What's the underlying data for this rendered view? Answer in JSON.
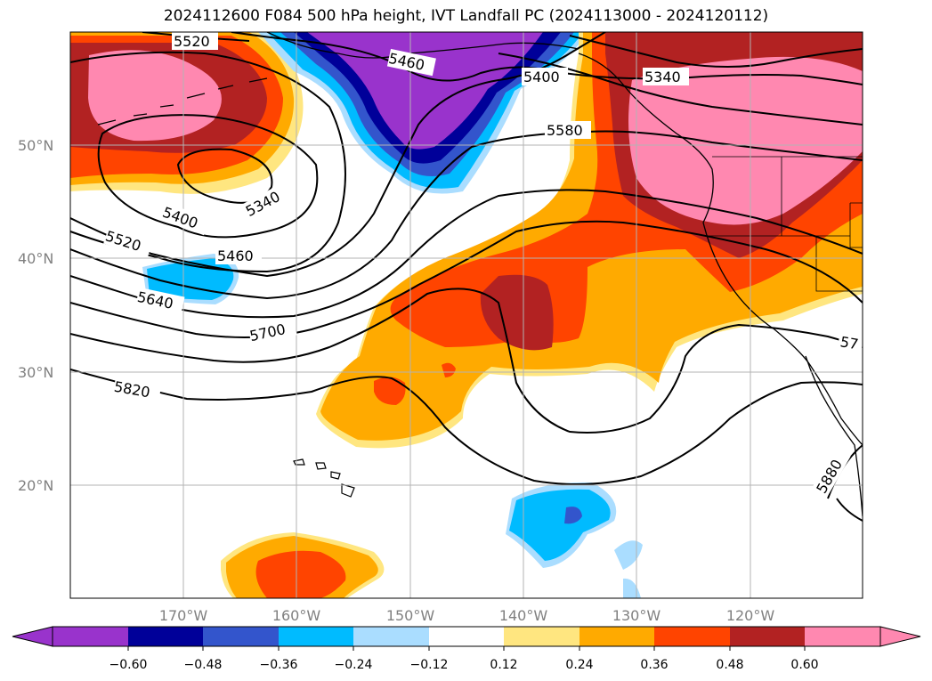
{
  "title": "2024112600 F084 500 hPa height, IVT Landfall PC (2024113000 - 2024120112)",
  "map": {
    "lat_ticks": [
      {
        "lat": 50,
        "label": "50°N"
      },
      {
        "lat": 40,
        "label": "40°N"
      },
      {
        "lat": 30,
        "label": "30°N"
      },
      {
        "lat": 20,
        "label": "20°N"
      }
    ],
    "lon_ticks": [
      {
        "lon": -170,
        "label": "170°W"
      },
      {
        "lon": -160,
        "label": "160°W"
      },
      {
        "lon": -150,
        "label": "150°W"
      },
      {
        "lon": -140,
        "label": "140°W"
      },
      {
        "lon": -130,
        "label": "130°W"
      },
      {
        "lon": -120,
        "label": "120°W"
      }
    ],
    "contour_labels": [
      "5520",
      "5460",
      "5400",
      "5340",
      "5580",
      "5340",
      "5400",
      "5520",
      "5460",
      "5640",
      "5700",
      "5820",
      "5880",
      "57"
    ]
  },
  "colorbar": {
    "ticks": [
      "−0.60",
      "−0.48",
      "−0.36",
      "−0.24",
      "−0.12",
      "0.12",
      "0.24",
      "0.36",
      "0.48",
      "0.60"
    ],
    "colors": [
      "#9933cc",
      "#000099",
      "#3355cc",
      "#00bbff",
      "#aaddff",
      "#ffffff",
      "#ffe680",
      "#ffaa00",
      "#ff4400",
      "#b22222",
      "#ff88b0"
    ]
  }
}
